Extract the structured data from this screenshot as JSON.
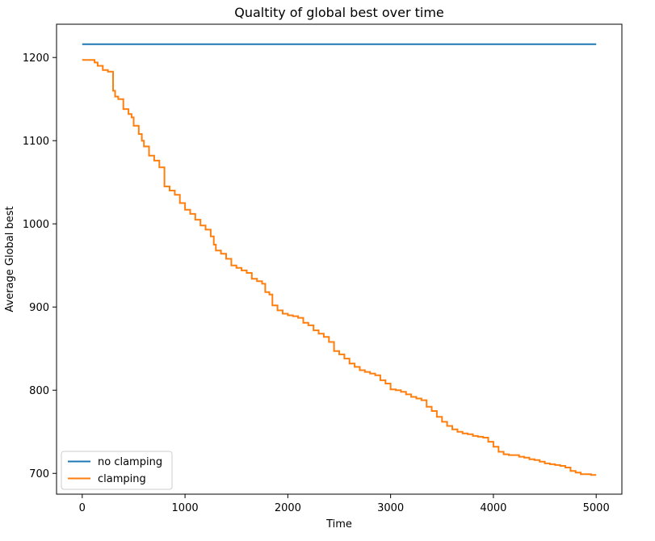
{
  "chart_data": {
    "type": "line",
    "title": "Qualtity of global best over time",
    "xlabel": "Time",
    "ylabel": "Average Global best",
    "xlim": [
      -250,
      5250
    ],
    "ylim": [
      675,
      1240
    ],
    "xticks": [
      0,
      1000,
      2000,
      3000,
      4000,
      5000
    ],
    "xtick_labels": [
      "0",
      "1000",
      "2000",
      "3000",
      "4000",
      "5000"
    ],
    "yticks": [
      700,
      800,
      900,
      1000,
      1100,
      1200
    ],
    "ytick_labels": [
      "700",
      "800",
      "900",
      "1000",
      "1100",
      "1200"
    ],
    "grid": false,
    "legend_position": "lower-left",
    "series": [
      {
        "name": "no clamping",
        "color": "#1f77b4",
        "x": [
          0,
          5000
        ],
        "y": [
          1216,
          1216
        ]
      },
      {
        "name": "clamping",
        "color": "#ff7f0e",
        "x": [
          0,
          100,
          120,
          150,
          200,
          250,
          300,
          320,
          350,
          400,
          450,
          480,
          500,
          550,
          580,
          600,
          650,
          700,
          750,
          800,
          850,
          900,
          950,
          1000,
          1050,
          1100,
          1150,
          1200,
          1250,
          1280,
          1300,
          1350,
          1400,
          1450,
          1500,
          1550,
          1600,
          1650,
          1700,
          1750,
          1780,
          1820,
          1850,
          1900,
          1950,
          2000,
          2050,
          2100,
          2150,
          2200,
          2250,
          2300,
          2350,
          2400,
          2450,
          2500,
          2550,
          2600,
          2650,
          2700,
          2750,
          2800,
          2850,
          2900,
          2950,
          3000,
          3050,
          3100,
          3150,
          3200,
          3250,
          3300,
          3350,
          3400,
          3450,
          3500,
          3550,
          3600,
          3650,
          3700,
          3750,
          3800,
          3850,
          3900,
          3950,
          4000,
          4050,
          4100,
          4150,
          4200,
          4250,
          4300,
          4350,
          4400,
          4450,
          4500,
          4550,
          4600,
          4650,
          4700,
          4750,
          4800,
          4850,
          4900,
          4950,
          5000
        ],
        "y": [
          1197,
          1197,
          1194,
          1190,
          1185,
          1183,
          1160,
          1153,
          1150,
          1138,
          1132,
          1128,
          1118,
          1108,
          1100,
          1093,
          1082,
          1076,
          1068,
          1045,
          1040,
          1035,
          1025,
          1017,
          1012,
          1005,
          998,
          993,
          985,
          975,
          968,
          964,
          958,
          950,
          947,
          944,
          941,
          934,
          931,
          928,
          918,
          915,
          902,
          896,
          892,
          890,
          889,
          887,
          881,
          878,
          872,
          868,
          864,
          858,
          847,
          843,
          838,
          832,
          828,
          824,
          822,
          820,
          818,
          812,
          808,
          801,
          800,
          798,
          795,
          792,
          790,
          788,
          780,
          775,
          768,
          762,
          757,
          753,
          750,
          748,
          747,
          745,
          744,
          743,
          738,
          732,
          726,
          723,
          722,
          722,
          720,
          719,
          717,
          716,
          714,
          712,
          711,
          710,
          709,
          707,
          703,
          701,
          699,
          699,
          698,
          698
        ]
      }
    ]
  }
}
